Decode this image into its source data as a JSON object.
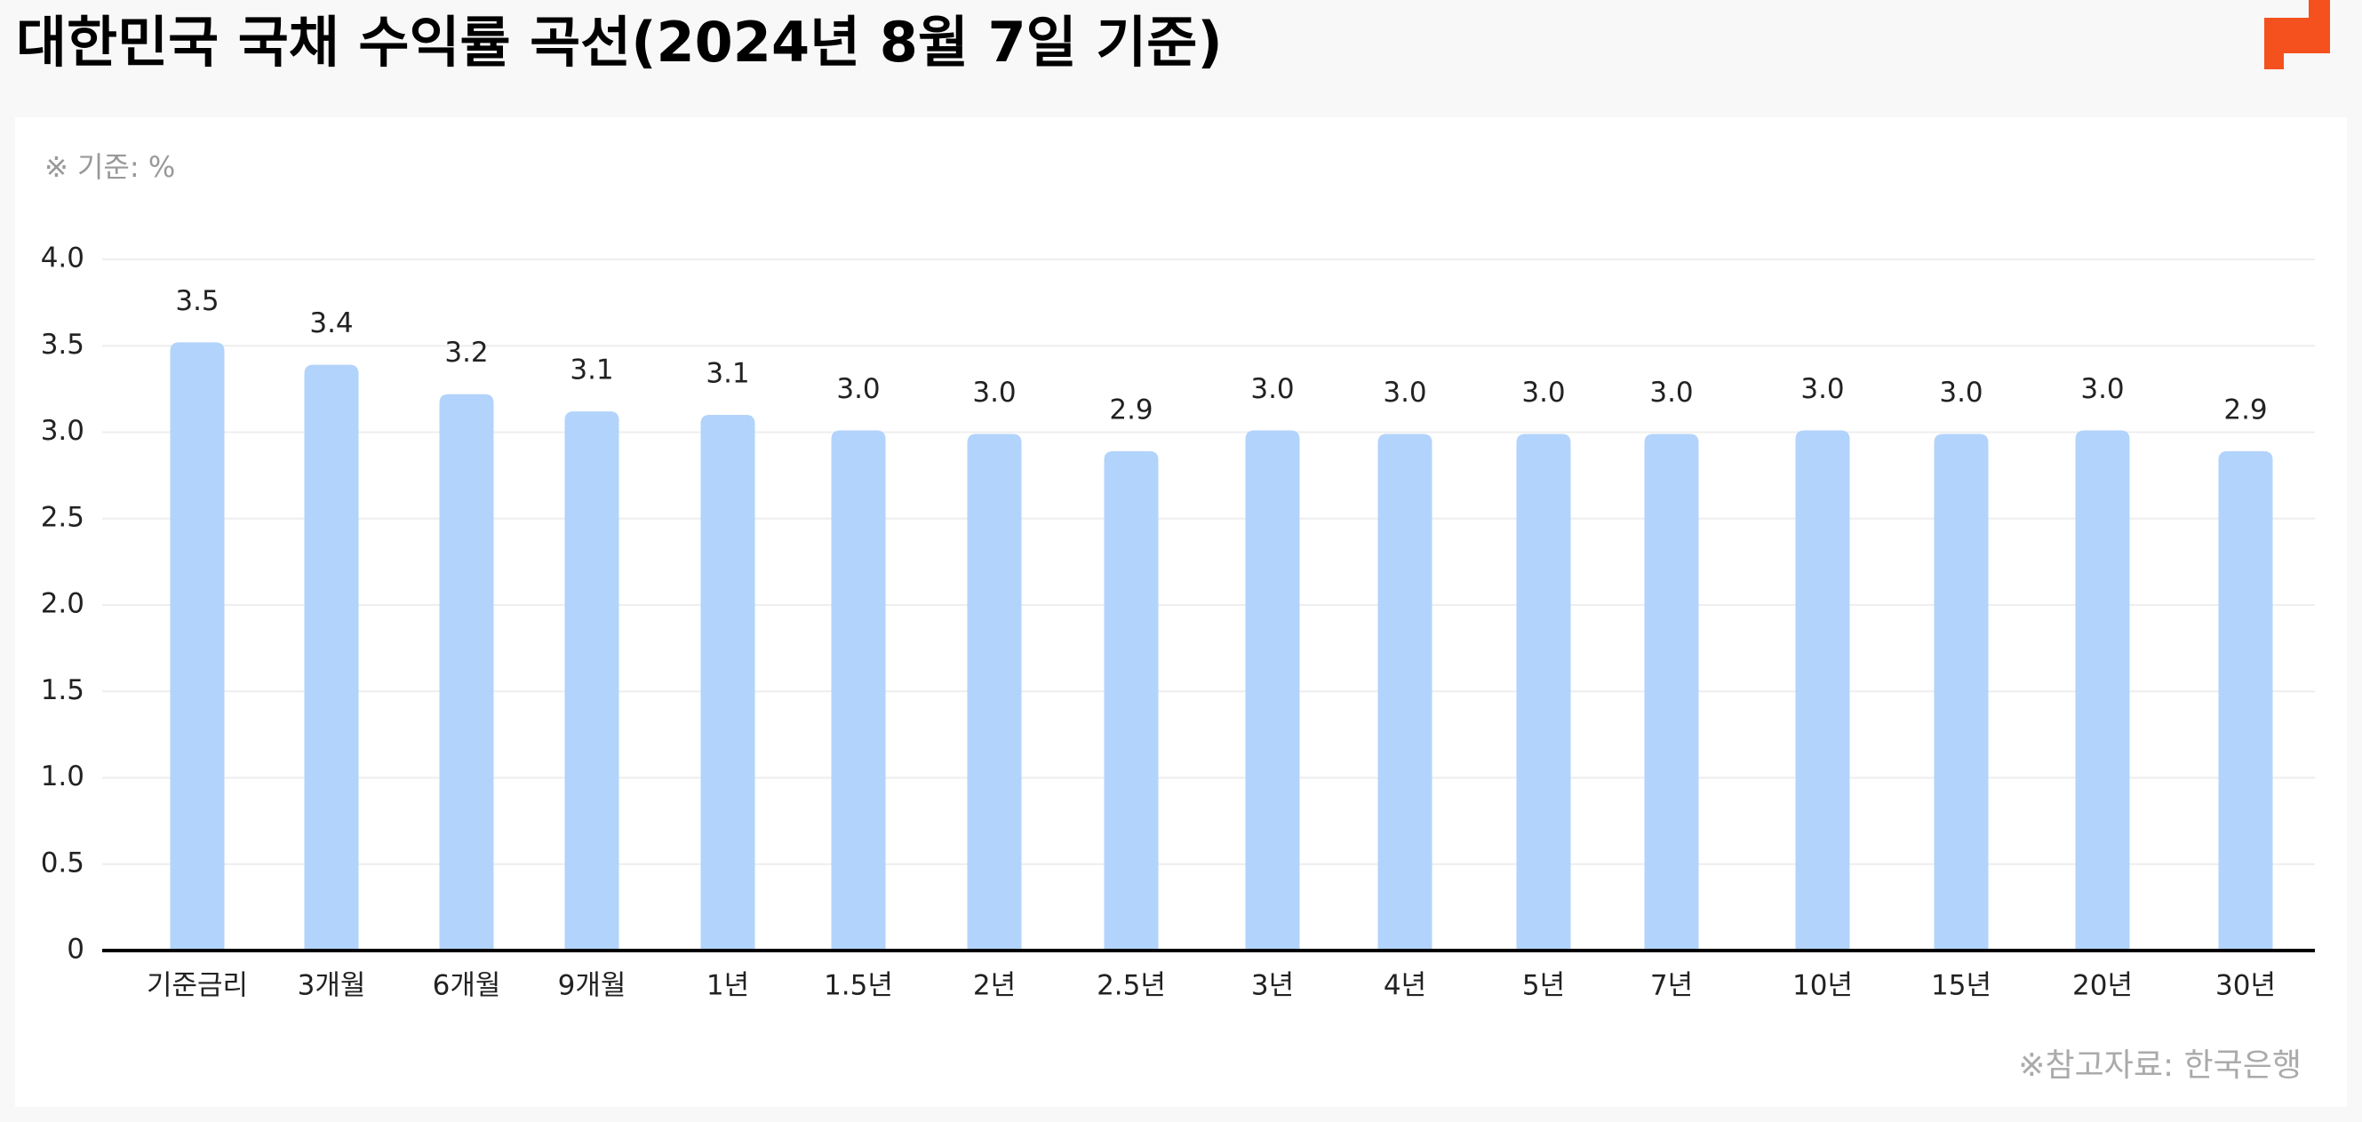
{
  "title": "대한민국 국채 수익률 곡선(2024년 8월 7일 기준)",
  "unit_note": "※ 기준: %",
  "source": "※참고자료: 한국은행",
  "chart_data": {
    "type": "bar",
    "categories": [
      "기준금리",
      "3개월",
      "6개월",
      "9개월",
      "1년",
      "1.5년",
      "2년",
      "2.5년",
      "3년",
      "4년",
      "5년",
      "7년",
      "10년",
      "15년",
      "20년",
      "30년"
    ],
    "values": [
      3.52,
      3.39,
      3.22,
      3.12,
      3.1,
      3.01,
      2.99,
      2.89,
      3.01,
      2.99,
      2.99,
      2.99,
      3.01,
      2.99,
      3.01,
      2.89
    ],
    "value_labels": [
      "3.5",
      "3.4",
      "3.2",
      "3.1",
      "3.1",
      "3.0",
      "3.0",
      "2.9",
      "3.0",
      "3.0",
      "3.0",
      "3.0",
      "3.0",
      "3.0",
      "3.0",
      "2.9"
    ],
    "color": "#b2d3fb",
    "ylim": [
      0,
      4
    ],
    "yticks": [
      0,
      0.5,
      {
        "value": 1,
        "label": "1.0"
      },
      1.5,
      {
        "value": 2,
        "label": "2.0"
      },
      2.5,
      {
        "value": 3,
        "label": "3.0"
      },
      3.5,
      {
        "value": 4,
        "label": "4.0"
      }
    ],
    "grid": true
  }
}
